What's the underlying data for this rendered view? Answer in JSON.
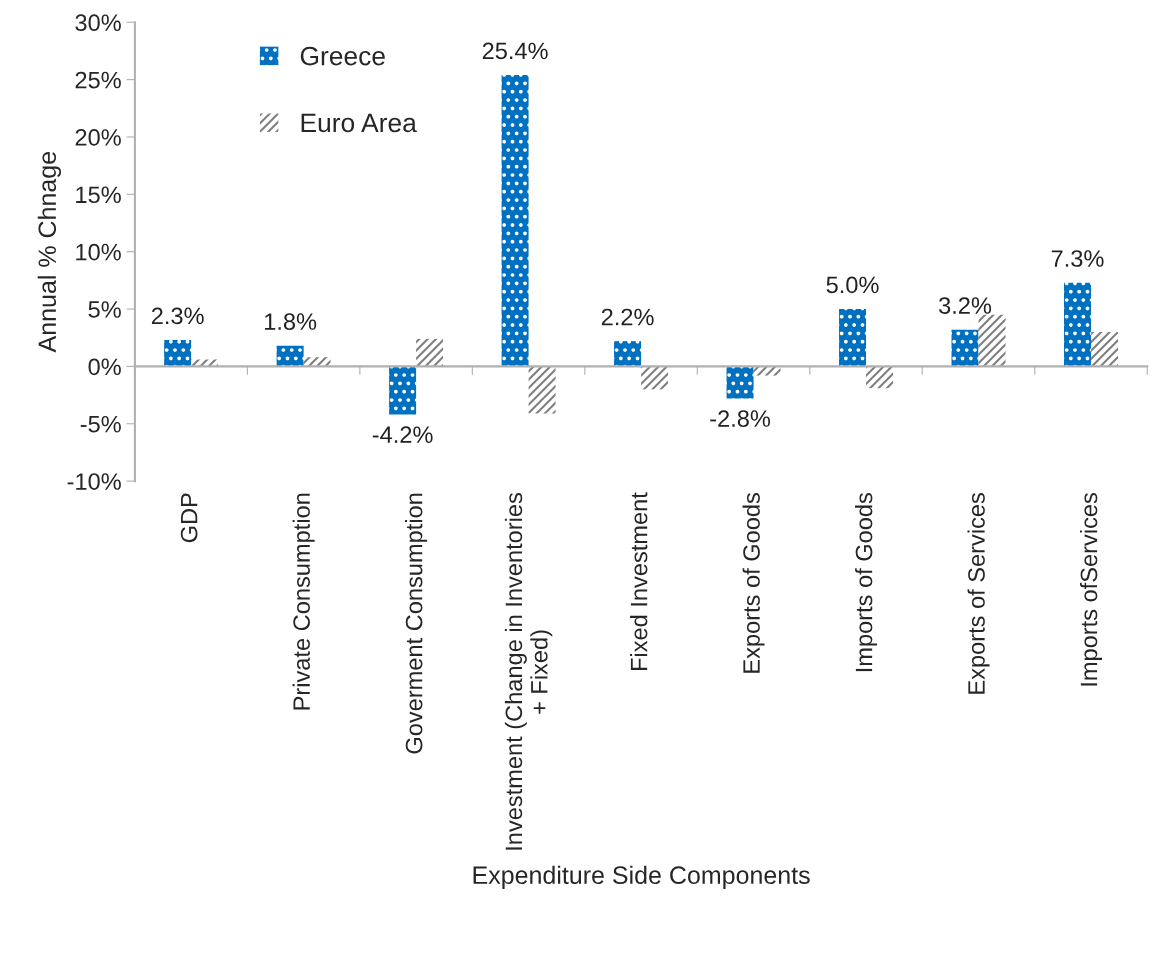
{
  "chart_data": {
    "type": "bar",
    "xlabel": "Expenditure Side Components",
    "ylabel": "Annual % Chnage",
    "categories": [
      "GDP",
      "Private Consumption",
      "Goverment Consumption",
      "Investment (Change in Inventories\n+ Fixed)",
      "Fixed Investment",
      "Exports of Goods",
      "Imports of Goods",
      "Exports of Services",
      "Imports ofServices"
    ],
    "series": [
      {
        "name": "Greece",
        "color": "#0070c0",
        "values": [
          2.3,
          1.8,
          -4.2,
          25.4,
          2.2,
          -2.8,
          5.0,
          3.2,
          7.3
        ],
        "value_labels": [
          "2.3%",
          "1.8%",
          "-4.2%",
          "25.4%",
          "2.2%",
          "-2.8%",
          "5.0%",
          "3.2%",
          "7.3%"
        ]
      },
      {
        "name": "Euro Area",
        "color": "#808080",
        "values": [
          0.6,
          0.8,
          2.4,
          -4.1,
          -2.0,
          -0.8,
          -1.9,
          4.5,
          3.0
        ]
      }
    ],
    "ylim": [
      -10,
      30
    ],
    "yticks": [
      {
        "value": -10,
        "label": "-10%"
      },
      {
        "value": -5,
        "label": "-5%"
      },
      {
        "value": 0,
        "label": "0%"
      },
      {
        "value": 5,
        "label": "5%"
      },
      {
        "value": 10,
        "label": "10%"
      },
      {
        "value": 15,
        "label": "15%"
      },
      {
        "value": 20,
        "label": "20%"
      },
      {
        "value": 25,
        "label": "25%"
      },
      {
        "value": 30,
        "label": "30%"
      }
    ],
    "legend": "top left"
  }
}
